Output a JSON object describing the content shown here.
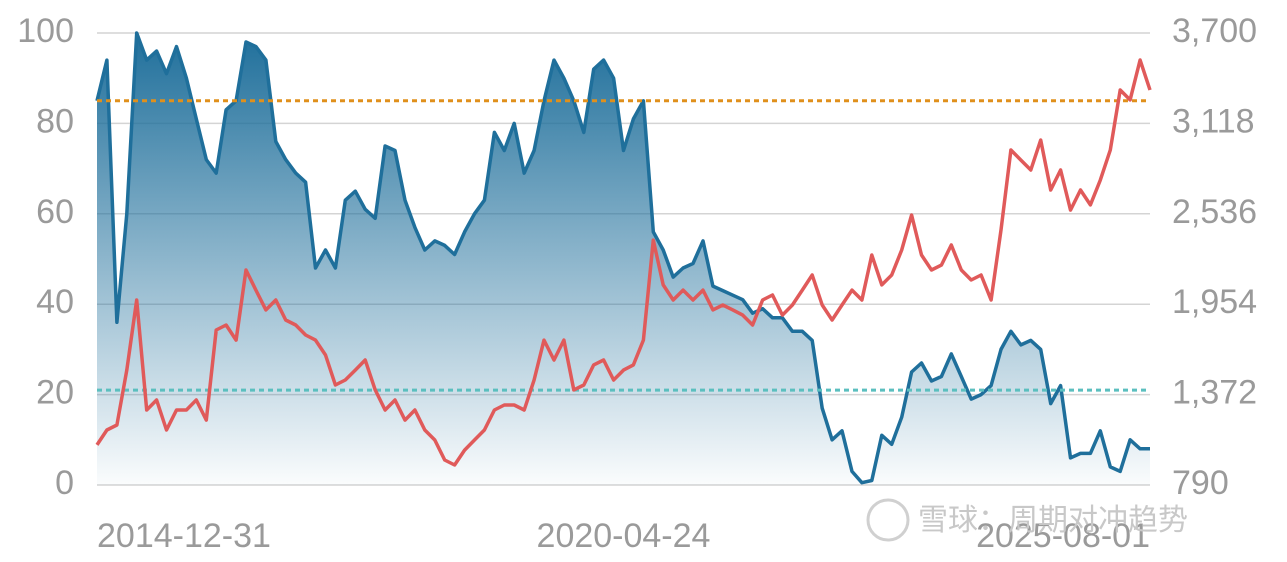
{
  "chart_data": {
    "type": "line",
    "categories": [
      "2014-12-31",
      null,
      null,
      null,
      null,
      null,
      null,
      null,
      null,
      null,
      null,
      null,
      null,
      null,
      null,
      null,
      null,
      null,
      null,
      null,
      null,
      null,
      null,
      null,
      null,
      null,
      null,
      null,
      null,
      null,
      null,
      null,
      null,
      null,
      null,
      null,
      null,
      null,
      null,
      null,
      null,
      null,
      null,
      null,
      null,
      null,
      null,
      null,
      null,
      null,
      null,
      null,
      null,
      "2020-04-24",
      null,
      null,
      null,
      null,
      null,
      null,
      null,
      null,
      null,
      null,
      null,
      null,
      null,
      null,
      null,
      null,
      null,
      null,
      null,
      null,
      null,
      null,
      null,
      null,
      null,
      null,
      null,
      null,
      null,
      null,
      null,
      null,
      null,
      null,
      null,
      null,
      null,
      null,
      null,
      null,
      null,
      null,
      null,
      null,
      null,
      null,
      null,
      null,
      null,
      null,
      null,
      null,
      "2025-08-01"
    ],
    "series": [
      {
        "color": "#1f6f9b",
        "area": true,
        "values": [
          85,
          94,
          36,
          60,
          100,
          94,
          96,
          91,
          97,
          90,
          81,
          72,
          69,
          83,
          85,
          98,
          97,
          94,
          76,
          72,
          69,
          67,
          48,
          52,
          48,
          63,
          65,
          61,
          59,
          75,
          74,
          63,
          57,
          52,
          54,
          53,
          51,
          56,
          60,
          63,
          78,
          74,
          80,
          69,
          74,
          85,
          94,
          90,
          85,
          78,
          92,
          94,
          90,
          74,
          81,
          85,
          56,
          52,
          46,
          48,
          49,
          54,
          44,
          43,
          42,
          41,
          38,
          39,
          37,
          37,
          34,
          34,
          32,
          17,
          10,
          12,
          3,
          0.5,
          1,
          11,
          9,
          15,
          25,
          27,
          23,
          24,
          29,
          24,
          19,
          20,
          22,
          30,
          34,
          31,
          32,
          30,
          18,
          22,
          6,
          7,
          7,
          12,
          4,
          3,
          10,
          8,
          8
        ]
      },
      {
        "color": "#e05a5a",
        "axis": "y2",
        "values": [
          1048,
          1144,
          1176,
          1530,
          1981,
          1273,
          1337,
          1144,
          1273,
          1273,
          1337,
          1208,
          1788,
          1820,
          1723,
          2174,
          2045,
          1917,
          1981,
          1852,
          1820,
          1756,
          1723,
          1627,
          1434,
          1466,
          1530,
          1595,
          1402,
          1273,
          1337,
          1208,
          1273,
          1144,
          1080,
          951,
          919,
          1015,
          1080,
          1144,
          1273,
          1305,
          1305,
          1273,
          1466,
          1723,
          1595,
          1723,
          1402,
          1434,
          1563,
          1595,
          1466,
          1530,
          1563,
          1723,
          2367,
          2078,
          1981,
          2045,
          1981,
          2045,
          1917,
          1949,
          1917,
          1884,
          1820,
          1981,
          2013,
          1884,
          1949,
          2045,
          2142,
          1949,
          1852,
          1949,
          2045,
          1981,
          2271,
          2078,
          2142,
          2303,
          2528,
          2271,
          2174,
          2206,
          2335,
          2174,
          2110,
          2142,
          1981,
          2432,
          2947,
          2882,
          2818,
          3011,
          2689,
          2818,
          2560,
          2689,
          2593,
          2753,
          2947,
          3333,
          3269,
          3526,
          3333
        ]
      }
    ],
    "reference_lines": [
      {
        "value": 85,
        "color": "#e0901c"
      },
      {
        "value": 21,
        "color": "#5bbfbf"
      }
    ],
    "ylim": [
      0,
      100
    ],
    "yticks": [
      0,
      20,
      40,
      60,
      80,
      100
    ],
    "y2lim": [
      790,
      3700
    ],
    "y2ticks": [
      790,
      {
        "value": 1372,
        "label": "1,372"
      },
      {
        "value": 1954,
        "label": "1,954"
      },
      {
        "value": 2536,
        "label": "2,536"
      },
      {
        "value": 3118,
        "label": "3,118"
      },
      {
        "value": 3700,
        "label": "3,700"
      }
    ],
    "grid": true,
    "watermark": "雪球：周期对冲趋势"
  }
}
